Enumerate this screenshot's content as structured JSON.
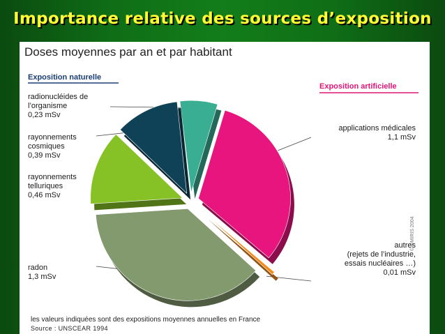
{
  "slide": {
    "title": "Importance relative des sources d’exposition"
  },
  "chart_data": {
    "type": "pie",
    "title": "Doses moyennes par an et par habitant",
    "unit": "mSv",
    "groups": [
      {
        "name": "Exposition naturelle",
        "color": "#1a3d73"
      },
      {
        "name": "Exposition artificielle",
        "color": "#e0157a"
      }
    ],
    "slices": [
      {
        "label": "radionucléides de l’organisme",
        "value": 0.23,
        "value_text": "0,23 mSv",
        "group": "Exposition naturelle",
        "color": "#3aae92"
      },
      {
        "label": "applications médicales",
        "value": 1.1,
        "value_text": "1,1 mSv",
        "group": "Exposition artificielle",
        "color": "#e8157e"
      },
      {
        "label": "autres (rejets de l’industrie, essais nucléaires …)",
        "value": 0.01,
        "value_text": "0,01 mSv",
        "group": "Exposition artificielle",
        "color": "#f28c1e"
      },
      {
        "label": "radon",
        "value": 1.3,
        "value_text": "1,3 mSv",
        "group": "Exposition naturelle",
        "color": "#839a6e"
      },
      {
        "label": "rayonnements telluriques",
        "value": 0.46,
        "value_text": "0,46 mSv",
        "group": "Exposition naturelle",
        "color": "#86c225"
      },
      {
        "label": "rayonnements cosmiques",
        "value": 0.39,
        "value_text": "0,39 mSv",
        "group": "Exposition naturelle",
        "color": "#0f4257"
      }
    ],
    "footnote": "les valeurs indiquées sont des expositions moyennes annuelles en France",
    "source": "Source : UNSCEAR 1994",
    "copyright": "© OMIRIS 2004"
  },
  "labels": {
    "organisme": "radionucléides de\nl’organisme\n0,23 mSv",
    "cosmiques": "rayonnements\ncosmiques\n0,39 mSv",
    "telluriques": "rayonnements\ntelluriques\n0,46 mSv",
    "radon": "radon\n1,3 mSv",
    "medicales": "applications médicales\n1,1 mSv",
    "autres": "autres\n(rejets de l’industrie,\nessais nucléaires …)\n0,01 mSv"
  }
}
